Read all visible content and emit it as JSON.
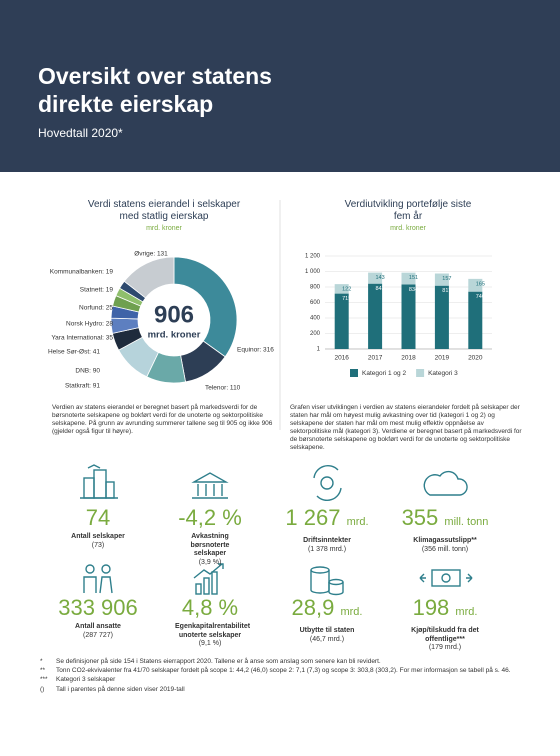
{
  "header": {
    "title": "Oversikt over statens direkte eierskap",
    "subtitle": "Hovedtall 2020*"
  },
  "chart_data": [
    {
      "type": "pie",
      "title": "Verdi statens eierandel i selskaper med statlig eierskap",
      "subtitle": "mrd. kroner",
      "center_value": 906,
      "center_unit": "mrd. kroner",
      "values": [
        316,
        110,
        91,
        90,
        41,
        35,
        28,
        25,
        19,
        19,
        131
      ],
      "value_labels": [
        "Equinor: 316",
        "Telenor: 110",
        "Statkraft: 91",
        "DNB: 90",
        "Helse Sør-Øst: 41",
        "Yara International: 35",
        "Norsk Hydro: 28",
        "Norfund: 25",
        "Statnett: 19",
        "Kommunalbanken: 19",
        "Øvrige: 131"
      ],
      "colors": [
        "#3d8a9a",
        "#2d3e55",
        "#6aa9a8",
        "#b6d3db",
        "#1e2b3c",
        "#5d7fc0",
        "#3f63a8",
        "#6fa04f",
        "#8fbf6c",
        "#2e4a6e",
        "#c7ccd1"
      ],
      "note": "Verdien av statens eierandel er beregnet basert på markedsverdi for de børsnoterte selskapene og bokført verdi for de unoterte og sektorpolitiske selskapene. På grunn av avrunding summerer tallene seg til 905 og ikke 906 (gjelder også figur til høyre)."
    },
    {
      "type": "stacked-bar",
      "title": "Verdiutvikling portefølje siste fem år",
      "subtitle": "mrd. kroner",
      "categories": [
        "2016",
        "2017",
        "2018",
        "2019",
        "2020"
      ],
      "series": [
        {
          "name": "Kategori 1 og 2",
          "color": "#1f6f7a",
          "values": [
            715,
            843,
            834,
            817,
            740
          ]
        },
        {
          "name": "Kategori 3",
          "color": "#b9d6d8",
          "values": [
            122,
            143,
            151,
            157,
            165
          ]
        }
      ],
      "ylim": [
        0,
        1200
      ],
      "yticks": [
        1,
        200,
        400,
        600,
        800,
        {
          "value": 1000,
          "label": "1 000"
        },
        {
          "value": 1200,
          "label": "1 200"
        }
      ],
      "grid": true,
      "note": "Grafen viser utviklingen i verdien av statens eierandeler fordelt på selskaper der staten har mål om høyest mulig avkastning over tid (kategori 1 og 2) og selskapene der staten har mål om mest mulig effektiv oppnåelse av sektorpolitiske mål (kategori 3). Verdiene er beregnet basert på markedsverdi for de børsnoterte selskapene og bokført verdi for de unoterte og sektorpolitiske selskapene."
    }
  ],
  "kpis": [
    {
      "value": "74",
      "label": "Antall selskaper",
      "previous": "(73)"
    },
    {
      "value": "-4,2 %",
      "label": "Avkastning børsnoterte selskaper",
      "previous": "(3,9 %)"
    },
    {
      "value": "1 267",
      "unit": "mrd.",
      "label": "Driftsinntekter",
      "previous": "(1 378 mrd.)"
    },
    {
      "value": "355",
      "unit": "mill. tonn",
      "label": "Klimagassutslipp**",
      "previous": "(356 mill. tonn)"
    },
    {
      "value": "333 906",
      "label": "Antall ansatte",
      "previous": "(287 727)"
    },
    {
      "value": "4,8 %",
      "label": "Egenkapitalrentabilitet unoterte selskaper",
      "previous": "(9,1 %)"
    },
    {
      "value": "28,9",
      "unit": "mrd.",
      "label": "Utbytte til staten",
      "previous": "(46,7 mrd.)"
    },
    {
      "value": "198",
      "unit": "mrd.",
      "label": "Kjøp/tilskudd fra det offentlige***",
      "previous": "(179 mrd.)"
    }
  ],
  "footnotes": [
    {
      "marker": "*",
      "text": "Se definisjoner på side 154 i Statens eierrapport 2020. Tallene er å anse som anslag som senere kan bli revidert."
    },
    {
      "marker": "**",
      "text": "Tonn CO2-ekvivalenter fra 41/70 selskaper fordelt på scope 1: 44,2 (46,0) scope 2: 7,1 (7,3) og scope 3: 303,8 (303,2). For mer informasjon se tabell på s. 46."
    },
    {
      "marker": "***",
      "text": "Kategori 3 selskaper"
    },
    {
      "marker": "()",
      "text": "Tall i parentes på denne siden viser 2019-tall"
    }
  ]
}
